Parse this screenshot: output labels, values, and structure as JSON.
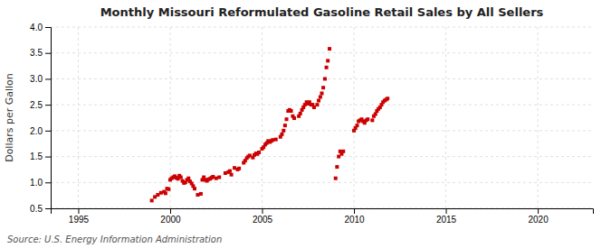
{
  "chart_data": {
    "type": "scatter",
    "title": "Monthly Missouri Reformulated Gasoline Retail Sales by All Sellers",
    "ylabel": "Dollars per Gallon",
    "annotations": [
      "Source: U.S. Energy Information Administration"
    ],
    "color": "#CC0000",
    "marker": "square",
    "grid": true,
    "xlim": [
      1993.5,
      2023
    ],
    "ylim": [
      0.5,
      4.0
    ],
    "xticks": [
      1995,
      2000,
      2005,
      2010,
      2015,
      2020
    ],
    "yticks": [
      0.5,
      {
        "value": 1.0,
        "label": "1.0"
      },
      1.5,
      {
        "value": 2.0,
        "label": "2.0"
      },
      2.5,
      {
        "value": 3.0,
        "label": "3.0"
      },
      3.5,
      {
        "value": 4.0,
        "label": "4.0"
      }
    ],
    "x": [
      1999.0,
      1999.17,
      1999.33,
      1999.5,
      1999.67,
      1999.75,
      1999.83,
      1999.92,
      2000.0,
      2000.08,
      2000.17,
      2000.25,
      2000.33,
      2000.42,
      2000.5,
      2000.58,
      2000.67,
      2000.75,
      2000.83,
      2000.92,
      2001.0,
      2001.08,
      2001.17,
      2001.25,
      2001.33,
      2001.5,
      2001.67,
      2001.75,
      2001.83,
      2001.92,
      2002.0,
      2002.08,
      2002.17,
      2002.25,
      2002.33,
      2002.5,
      2002.67,
      2003.0,
      2003.17,
      2003.25,
      2003.33,
      2003.5,
      2003.67,
      2003.75,
      2004.0,
      2004.08,
      2004.17,
      2004.25,
      2004.33,
      2004.5,
      2004.58,
      2004.67,
      2004.75,
      2004.83,
      2005.0,
      2005.08,
      2005.17,
      2005.25,
      2005.33,
      2005.42,
      2005.5,
      2005.58,
      2005.75,
      2006.0,
      2006.08,
      2006.17,
      2006.25,
      2006.33,
      2006.42,
      2006.5,
      2006.58,
      2006.67,
      2006.75,
      2007.0,
      2007.08,
      2007.17,
      2007.25,
      2007.33,
      2007.42,
      2007.5,
      2007.58,
      2007.67,
      2007.75,
      2007.83,
      2008.0,
      2008.08,
      2008.17,
      2008.25,
      2008.33,
      2008.42,
      2008.5,
      2008.58,
      2008.67,
      2009.0,
      2009.08,
      2009.17,
      2009.25,
      2009.33,
      2009.42,
      2010.0,
      2010.08,
      2010.17,
      2010.25,
      2010.33,
      2010.42,
      2010.5,
      2010.58,
      2010.67,
      2010.75,
      2011.0,
      2011.08,
      2011.17,
      2011.25,
      2011.33,
      2011.42,
      2011.5,
      2011.58,
      2011.67,
      2011.75,
      2011.83
    ],
    "values": [
      0.65,
      0.72,
      0.76,
      0.8,
      0.82,
      0.79,
      0.88,
      0.87,
      1.05,
      1.08,
      1.1,
      1.12,
      1.09,
      1.07,
      1.13,
      1.1,
      1.03,
      0.99,
      1.0,
      1.05,
      1.08,
      1.02,
      0.98,
      0.93,
      0.88,
      0.76,
      0.78,
      1.05,
      1.1,
      1.05,
      1.03,
      1.06,
      1.07,
      1.09,
      1.11,
      1.08,
      1.1,
      1.18,
      1.2,
      1.22,
      1.15,
      1.28,
      1.25,
      1.27,
      1.38,
      1.42,
      1.47,
      1.5,
      1.52,
      1.48,
      1.53,
      1.56,
      1.55,
      1.58,
      1.65,
      1.68,
      1.73,
      1.76,
      1.8,
      1.78,
      1.8,
      1.82,
      1.83,
      1.88,
      1.93,
      2.0,
      2.1,
      2.22,
      2.38,
      2.4,
      2.38,
      2.28,
      2.24,
      2.28,
      2.33,
      2.4,
      2.45,
      2.5,
      2.55,
      2.52,
      2.55,
      2.5,
      2.5,
      2.45,
      2.5,
      2.58,
      2.65,
      2.72,
      2.83,
      3.0,
      3.22,
      3.35,
      3.58,
      1.08,
      1.3,
      1.5,
      1.6,
      1.55,
      1.6,
      2.0,
      2.05,
      2.1,
      2.18,
      2.2,
      2.22,
      2.18,
      2.15,
      2.2,
      2.22,
      2.2,
      2.28,
      2.32,
      2.38,
      2.42,
      2.45,
      2.5,
      2.55,
      2.58,
      2.6,
      2.62
    ]
  }
}
